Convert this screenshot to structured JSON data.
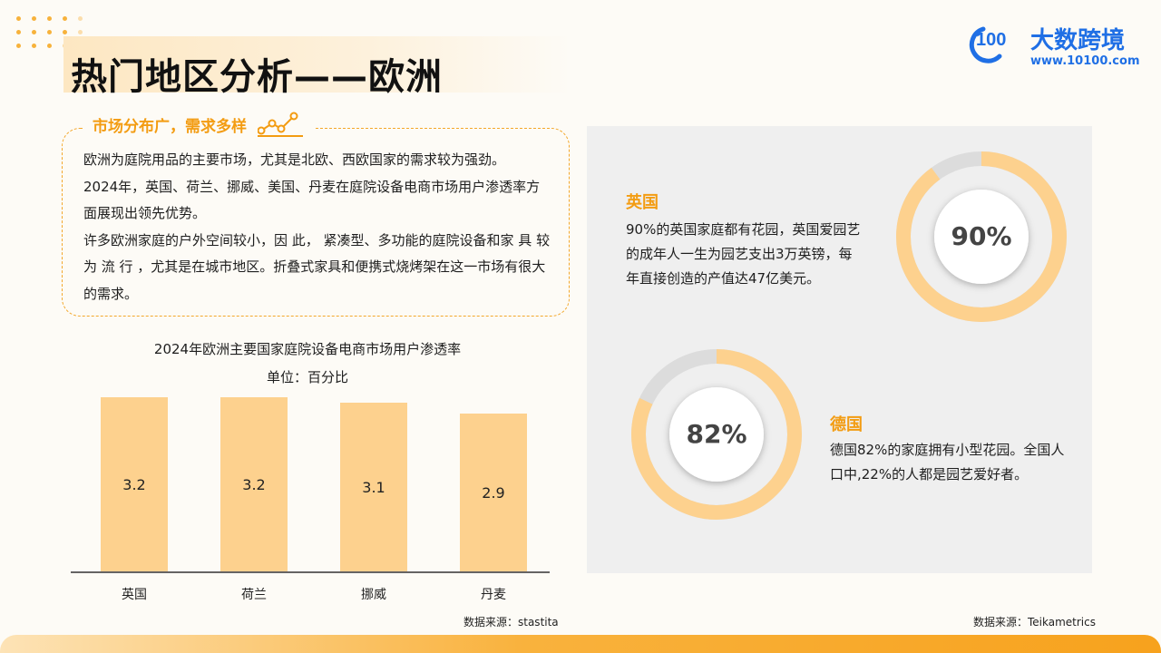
{
  "page": {
    "title": "热门地区分析——欧洲"
  },
  "logo": {
    "mark_text": "100",
    "name": "大数跨境",
    "url": "www.10100.com"
  },
  "market": {
    "title": "市场分布广，需求多样",
    "paragraphs": [
      "欧洲为庭院用品的主要市场，尤其是北欧、西欧国家的需求较为强劲。",
      "2024年，英国、荷兰、挪威、美国、丹麦在庭院设备电商市场用户渗透率方面展现出领先优势。",
      "许多欧洲家庭的户外空间较小，因 此， 紧凑型、多功能的庭院设备和家 具 较 为 流 行 ，尤其是在城市地区。折叠式家具和便携式烧烤架在这一市场有很大的需求。"
    ]
  },
  "chart_data": {
    "type": "bar",
    "title": "2024年欧洲主要国家庭院设备电商市场用户渗透率",
    "unit": "单位：百分比",
    "categories": [
      "英国",
      "荷兰",
      "挪威",
      "丹麦"
    ],
    "values": [
      3.2,
      3.2,
      3.1,
      2.9
    ],
    "value_labels": [
      "3.2",
      "3.2",
      "3.1",
      "2.9"
    ],
    "ylim": [
      0,
      3.2
    ],
    "bar_color": "#fdd18e",
    "grid": false
  },
  "sources": {
    "left": "数据来源：stastita",
    "right": "数据来源：Teikametrics"
  },
  "countries": [
    {
      "name": "英国",
      "description": "90%的英国家庭都有花园，英国爱园艺的成年人一生为园艺支出3万英镑，每年直接创造的产值达47亿美元。",
      "percent_label": "90%",
      "percent": 90
    },
    {
      "name": "德国",
      "description": "德国82%的家庭拥有小型花园。全国人口中,22%的人都是园艺爱好者。",
      "percent_label": "82%",
      "percent": 82
    }
  ],
  "colors": {
    "accent": "#f39c12",
    "ring": "#fdd18e",
    "ring_track": "#dcdcdc",
    "panel": "#efefef",
    "logo": "#1f6fe5"
  }
}
